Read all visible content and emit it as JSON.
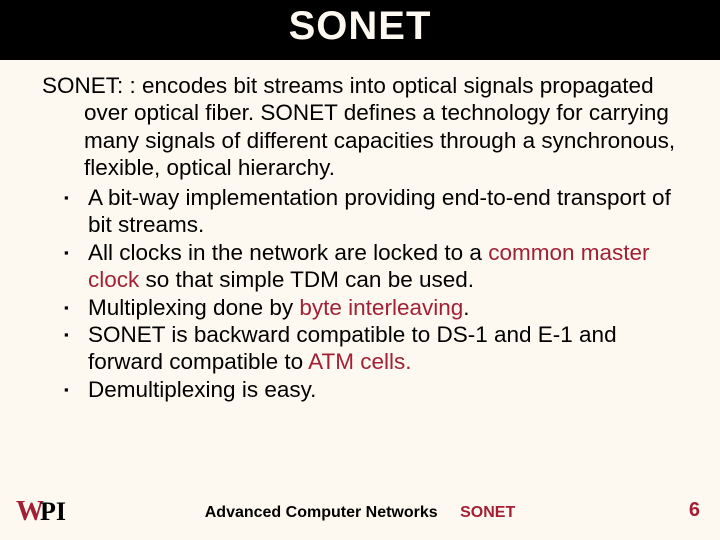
{
  "colors": {
    "background": "#fdf9f0",
    "title_bg": "#000000",
    "title_fg": "#fdf9f0",
    "text": "#000000",
    "accent": "#a31f34"
  },
  "title": "SONET",
  "intro": {
    "lead": "SONET: : ",
    "rest": "encodes bit streams into optical signals propagated over optical fiber. SONET defines a technology for carrying many signals of different capacities through a synchronous, flexible, optical hierarchy."
  },
  "bullets": [
    {
      "pre": "A bit-way implementation providing end-to-end transport of bit streams.",
      "hl": "",
      "post": ""
    },
    {
      "pre": "All clocks in the network are locked to a ",
      "hl": "common master clock",
      "post": " so that simple TDM can be used."
    },
    {
      "pre": "Multiplexing done by ",
      "hl": "byte interleaving",
      "post": "."
    },
    {
      "pre": "SONET is backward compatible to DS-1 and E-1 and forward compatible to ",
      "hl": "ATM cells.",
      "post": ""
    },
    {
      "pre": "Demultiplexing is easy.",
      "hl": "",
      "post": ""
    }
  ],
  "footer": {
    "course": "Advanced Computer Networks",
    "topic": "SONET",
    "page": "6"
  },
  "logo": {
    "w": "W",
    "pi": "PI"
  }
}
